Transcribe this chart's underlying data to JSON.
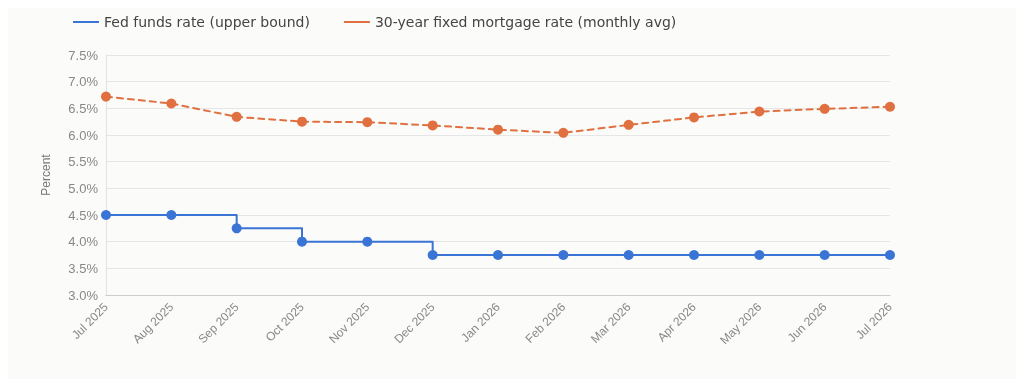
{
  "chart_data": {
    "type": "line",
    "ylabel": "Percent",
    "categories": [
      "Jul 2025",
      "Aug 2025",
      "Sep 2025",
      "Oct 2025",
      "Nov 2025",
      "Dec 2025",
      "Jan 2026",
      "Feb 2026",
      "Mar 2026",
      "Apr 2026",
      "May 2026",
      "Jun 2026",
      "Jul 2026"
    ],
    "series": [
      {
        "name": "Fed funds rate (upper bound)",
        "type": "step",
        "color": "#3a75d6",
        "line_style": "solid",
        "values": [
          4.5,
          4.5,
          4.25,
          4.0,
          4.0,
          3.75,
          3.75,
          3.75,
          3.75,
          3.75,
          3.75,
          3.75,
          3.75
        ]
      },
      {
        "name": "30-year fixed mortgage rate (monthly avg)",
        "color": "#e07040",
        "line_style": "dashed",
        "values": [
          6.72,
          6.59,
          6.34,
          6.25,
          6.24,
          6.18,
          6.1,
          6.04,
          6.19,
          6.33,
          6.44,
          6.49,
          6.53
        ]
      }
    ],
    "ylim": [
      3.0,
      7.5
    ],
    "yticks": [
      {
        "value": 3.0,
        "label": "3.0%"
      },
      {
        "value": 3.5,
        "label": "3.5%"
      },
      {
        "value": 4.0,
        "label": "4.0%"
      },
      {
        "value": 4.5,
        "label": "4.5%"
      },
      {
        "value": 5.0,
        "label": "5.0%"
      },
      {
        "value": 5.5,
        "label": "5.5%"
      },
      {
        "value": 6.0,
        "label": "6.0%"
      },
      {
        "value": 6.5,
        "label": "6.5%"
      },
      {
        "value": 7.0,
        "label": "7.0%"
      },
      {
        "value": 7.5,
        "label": "7.5%"
      }
    ],
    "grid": "y",
    "legend": "top left",
    "marker": "circle"
  }
}
